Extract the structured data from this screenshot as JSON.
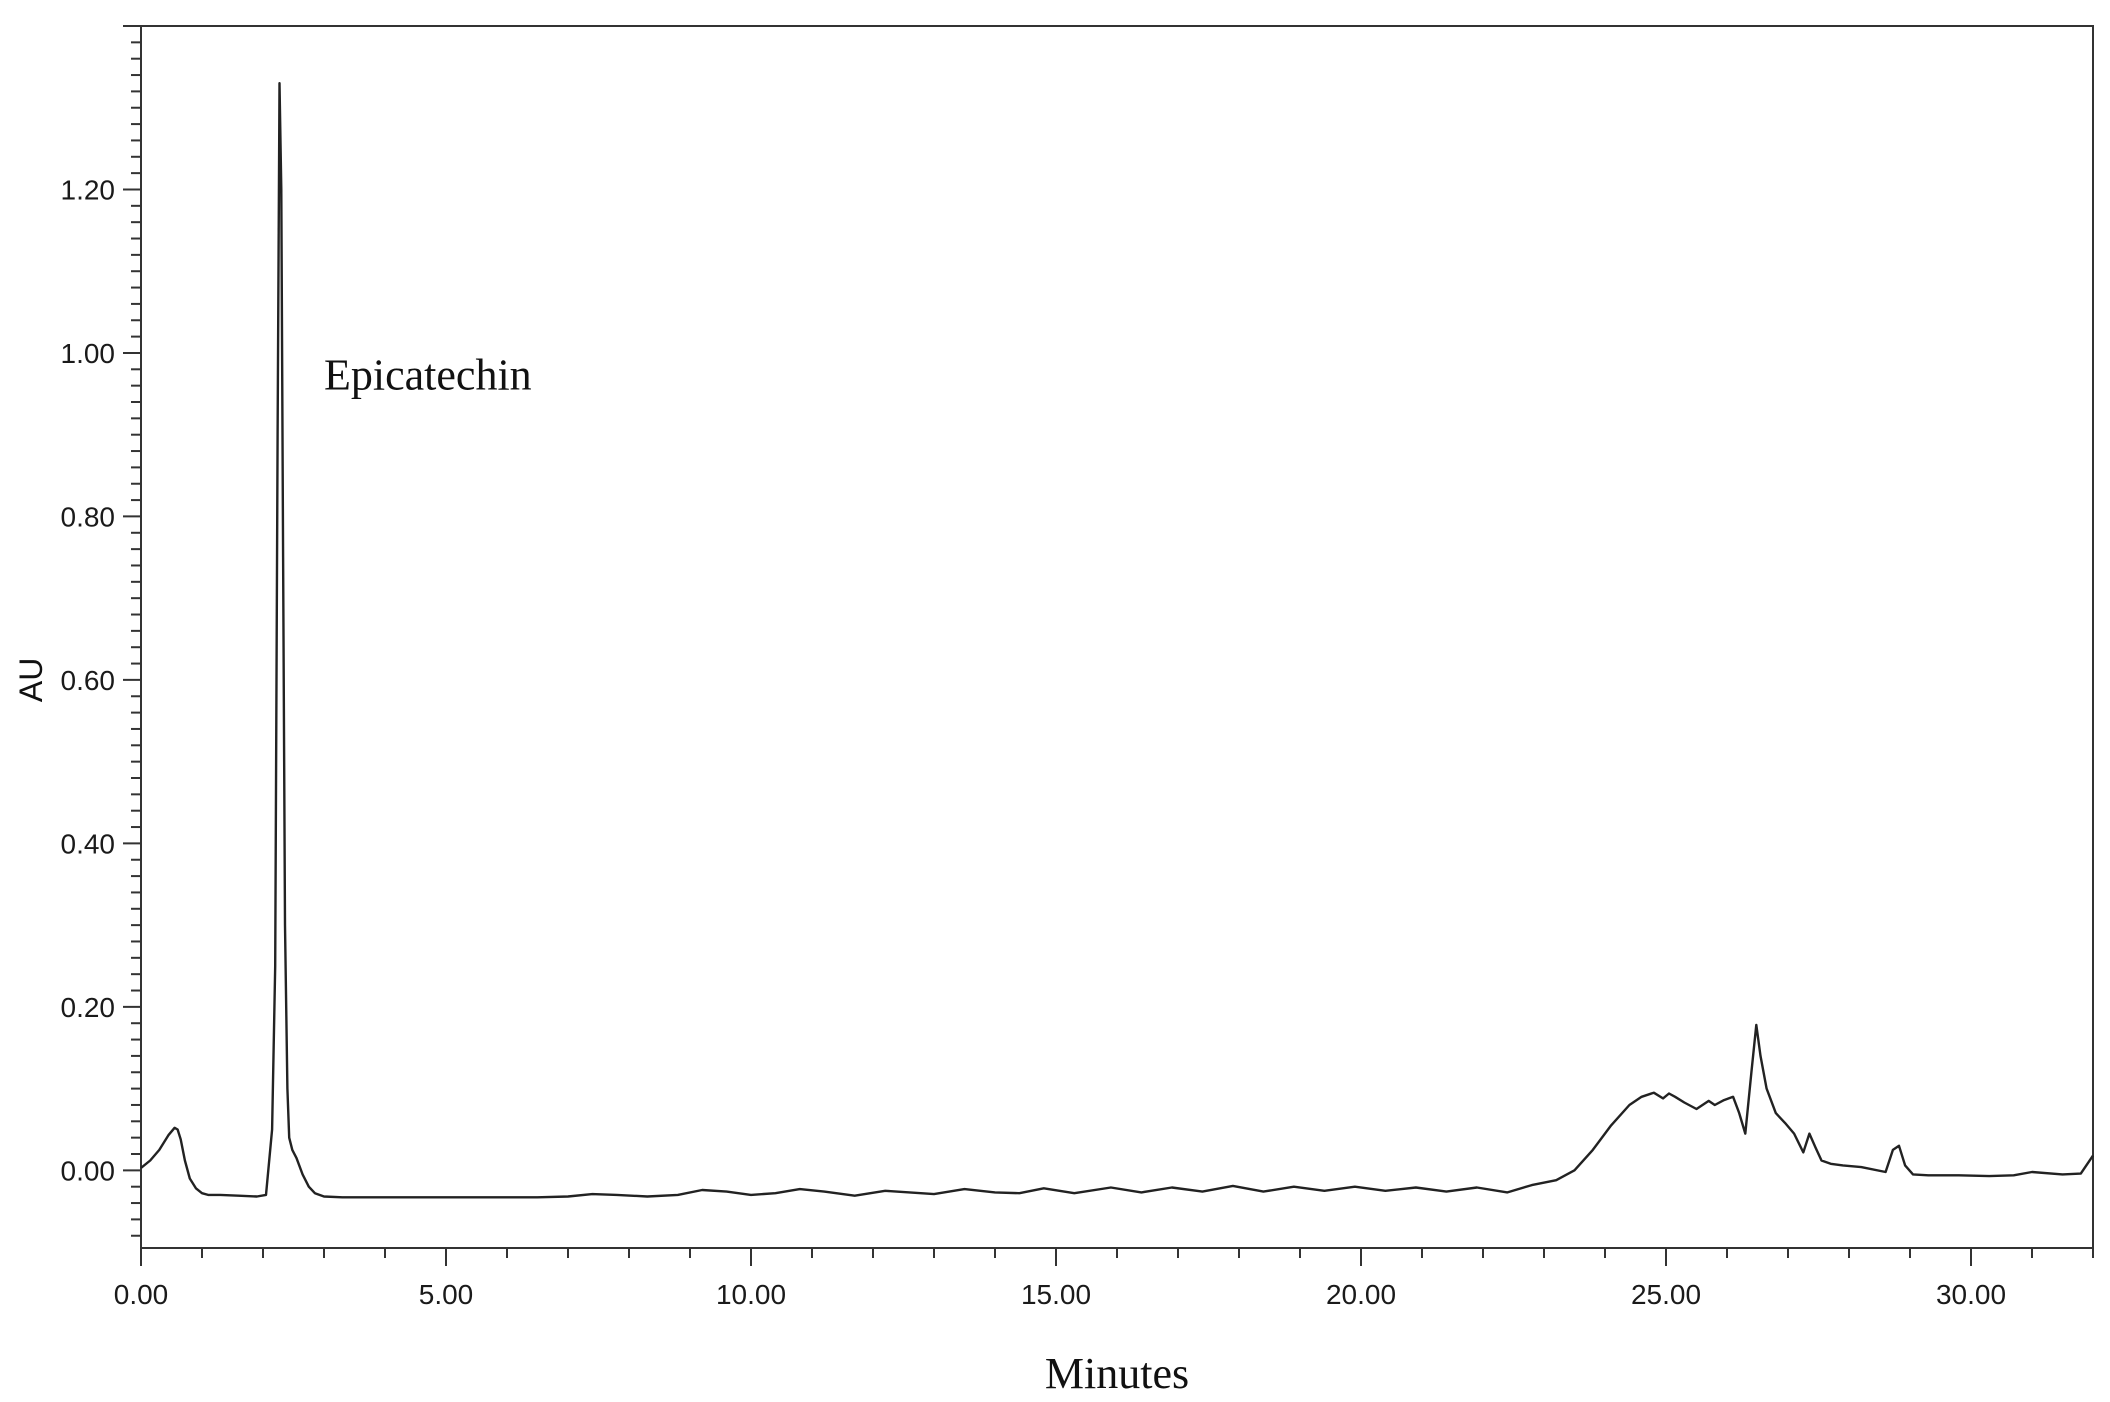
{
  "chart_data": {
    "type": "line",
    "xlabel": "Minutes",
    "ylabel": "AU",
    "xlim": [
      0,
      32
    ],
    "ylim": [
      -0.095,
      1.4
    ],
    "x_ticks": [
      0,
      5,
      10,
      15,
      20,
      25,
      30
    ],
    "x_tick_labels": [
      "0.00",
      "5.00",
      "10.00",
      "15.00",
      "20.00",
      "25.00",
      "30.00"
    ],
    "y_ticks": [
      0,
      0.2,
      0.4,
      0.6,
      0.8,
      1.0,
      1.2
    ],
    "y_tick_labels": [
      "0.00",
      "0.20",
      "0.40",
      "0.60",
      "0.80",
      "1.00",
      "1.20"
    ],
    "grid": false,
    "line_color": "#222222",
    "annotations": [
      {
        "text": "Epicatechin",
        "x": 3.0,
        "y": 0.955
      }
    ],
    "series": [
      {
        "x": [
          0,
          0.15,
          0.3,
          0.45,
          0.55,
          0.6,
          0.65,
          0.72,
          0.8,
          0.9,
          1.0,
          1.1,
          1.3,
          1.6,
          1.9,
          2.05,
          2.15,
          2.2,
          2.24,
          2.27,
          2.3,
          2.33,
          2.36,
          2.4,
          2.43,
          2.48,
          2.55,
          2.65,
          2.75,
          2.85,
          3.0,
          3.3,
          3.7,
          4.5,
          5.5,
          6.5,
          7.0,
          7.4,
          7.8,
          8.3,
          8.8,
          9.2,
          9.6,
          10.0,
          10.4,
          10.8,
          11.2,
          11.7,
          12.2,
          12.6,
          13.0,
          13.5,
          14.0,
          14.4,
          14.8,
          15.3,
          15.9,
          16.4,
          16.9,
          17.4,
          17.9,
          18.4,
          18.9,
          19.4,
          19.9,
          20.4,
          20.9,
          21.4,
          21.9,
          22.4,
          22.8,
          23.2,
          23.5,
          23.8,
          24.1,
          24.4,
          24.6,
          24.8,
          24.95,
          25.05,
          25.15,
          25.3,
          25.5,
          25.7,
          25.8,
          25.95,
          26.1,
          26.2,
          26.3,
          26.4,
          26.48,
          26.55,
          26.65,
          26.8,
          26.95,
          27.1,
          27.25,
          27.35,
          27.45,
          27.55,
          27.7,
          27.9,
          28.2,
          28.6,
          28.72,
          28.82,
          28.92,
          29.05,
          29.3,
          29.8,
          30.3,
          30.7,
          31.0,
          31.5,
          31.8,
          32.0
        ],
        "y": [
          0.003,
          0.012,
          0.025,
          0.043,
          0.052,
          0.05,
          0.038,
          0.012,
          -0.01,
          -0.022,
          -0.028,
          -0.03,
          -0.03,
          -0.031,
          -0.032,
          -0.03,
          0.05,
          0.25,
          0.9,
          1.33,
          1.2,
          0.75,
          0.3,
          0.1,
          0.04,
          0.025,
          0.015,
          -0.005,
          -0.02,
          -0.028,
          -0.032,
          -0.033,
          -0.033,
          -0.033,
          -0.033,
          -0.033,
          -0.032,
          -0.029,
          -0.03,
          -0.032,
          -0.03,
          -0.024,
          -0.026,
          -0.03,
          -0.028,
          -0.023,
          -0.026,
          -0.031,
          -0.025,
          -0.027,
          -0.029,
          -0.023,
          -0.027,
          -0.028,
          -0.022,
          -0.028,
          -0.021,
          -0.027,
          -0.021,
          -0.026,
          -0.019,
          -0.026,
          -0.02,
          -0.025,
          -0.02,
          -0.025,
          -0.021,
          -0.026,
          -0.021,
          -0.027,
          -0.018,
          -0.012,
          0.0,
          0.025,
          0.055,
          0.08,
          0.09,
          0.095,
          0.088,
          0.094,
          0.09,
          0.083,
          0.075,
          0.085,
          0.08,
          0.086,
          0.09,
          0.07,
          0.045,
          0.12,
          0.178,
          0.14,
          0.1,
          0.07,
          0.058,
          0.045,
          0.022,
          0.045,
          0.028,
          0.012,
          0.008,
          0.006,
          0.004,
          -0.002,
          0.025,
          0.03,
          0.006,
          -0.005,
          -0.006,
          -0.006,
          -0.007,
          -0.006,
          -0.002,
          -0.005,
          -0.004,
          0.018
        ]
      }
    ]
  }
}
